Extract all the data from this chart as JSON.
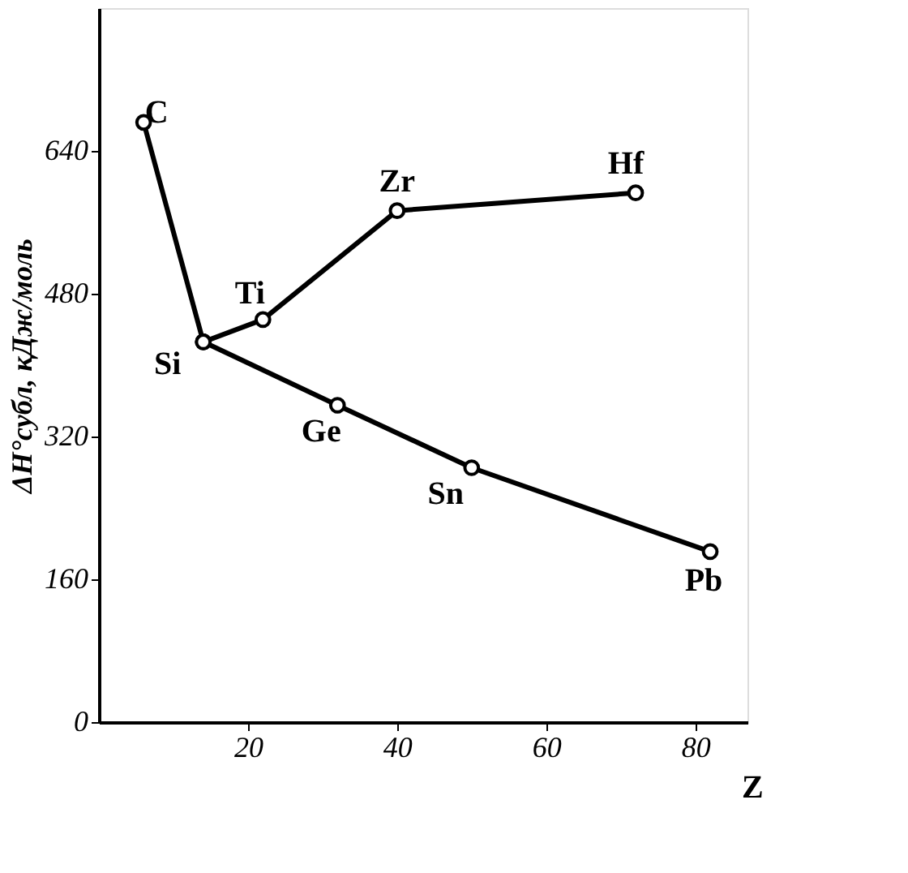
{
  "chart_data": {
    "type": "line",
    "xlabel": "Z",
    "ylabel": "ΔH°субл, кДж/моль",
    "series": [
      {
        "color": "#000000",
        "x": [
          6,
          14,
          32,
          50,
          82
        ],
        "values": [
          672,
          426,
          355,
          285,
          191
        ]
      },
      {
        "color": "#000000",
        "x": [
          14,
          22,
          40,
          72
        ],
        "values": [
          426,
          451,
          573,
          593
        ]
      }
    ],
    "xlim": [
      0,
      87
    ],
    "xticks": [
      20,
      40,
      60,
      80
    ],
    "ylim": [
      0,
      800
    ],
    "yticks": [
      0,
      160,
      320,
      480,
      640
    ],
    "marker": "circle",
    "line_style": "solid",
    "grid": false,
    "annotations": [
      {
        "text": "C",
        "x": 6,
        "y": 672
      },
      {
        "text": "Si",
        "x": 14,
        "y": 426
      },
      {
        "text": "Ti",
        "x": 22,
        "y": 451
      },
      {
        "text": "Ge",
        "x": 32,
        "y": 355
      },
      {
        "text": "Zr",
        "x": 40,
        "y": 573
      },
      {
        "text": "Sn",
        "x": 50,
        "y": 285
      },
      {
        "text": "Hf",
        "x": 72,
        "y": 593
      },
      {
        "text": "Pb",
        "x": 82,
        "y": 191
      }
    ]
  }
}
